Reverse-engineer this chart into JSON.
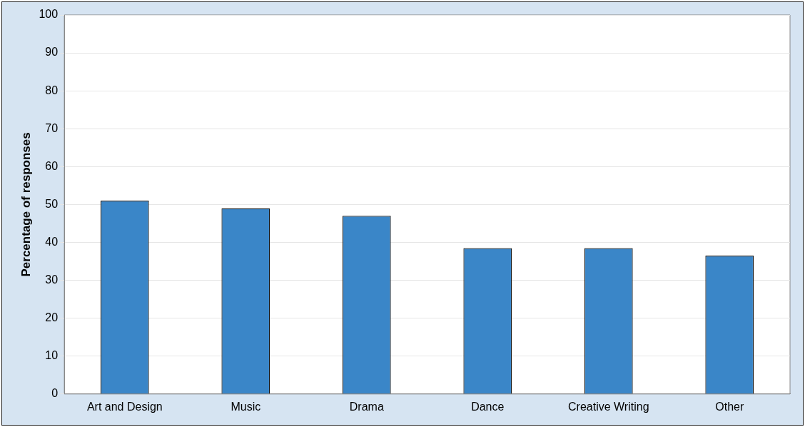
{
  "chart_data": {
    "type": "bar",
    "ylabel": "Percentage of responses",
    "categories": [
      "Art and Design",
      "Music",
      "Drama",
      "Dance",
      "Creative Writing",
      "Other"
    ],
    "values": [
      51,
      49,
      47,
      38.5,
      38.5,
      36.5
    ],
    "color": "#3a86c8",
    "ylim": [
      0,
      100
    ],
    "yticks": [
      0,
      10,
      20,
      30,
      40,
      50,
      60,
      70,
      80,
      90,
      100
    ],
    "grid": "y",
    "legend": false
  }
}
